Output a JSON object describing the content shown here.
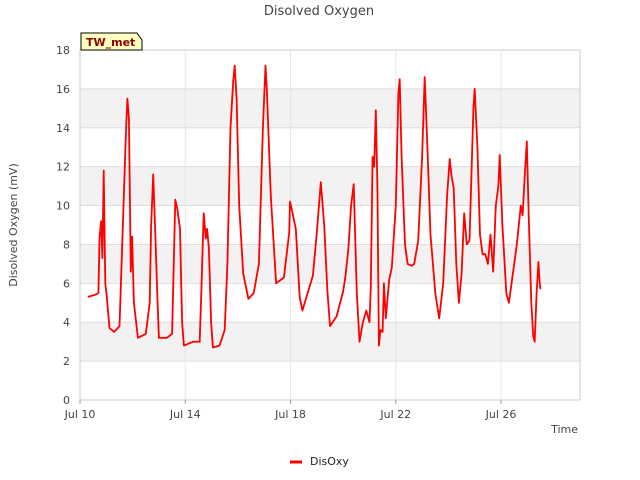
{
  "chart_data": {
    "type": "line",
    "title": "Disolved Oxygen",
    "xlabel": "Time",
    "ylabel": "Disolved Oxygen (mV)",
    "ylim": [
      0,
      18
    ],
    "yticks": [
      0,
      2,
      4,
      6,
      8,
      10,
      12,
      14,
      16,
      18
    ],
    "xlim": [
      10,
      29
    ],
    "xticks": [
      {
        "value": 10,
        "label": "Jul 10"
      },
      {
        "value": 14,
        "label": "Jul 14"
      },
      {
        "value": 18,
        "label": "Jul 18"
      },
      {
        "value": 22,
        "label": "Jul 22"
      },
      {
        "value": 26,
        "label": "Jul 26"
      }
    ],
    "grid": true,
    "banded_background": true,
    "site_label": "TW_met",
    "legend": {
      "position": "bottom-center"
    },
    "series": [
      {
        "name": "DisOxy",
        "color": "#ff0000",
        "points": [
          [
            10.3,
            5.3
          ],
          [
            10.55,
            5.4
          ],
          [
            10.7,
            5.5
          ],
          [
            10.74,
            8.3
          ],
          [
            10.8,
            9.2
          ],
          [
            10.85,
            7.3
          ],
          [
            10.9,
            11.8
          ],
          [
            10.96,
            6.0
          ],
          [
            11.02,
            5.3
          ],
          [
            11.12,
            3.7
          ],
          [
            11.3,
            3.5
          ],
          [
            11.5,
            3.8
          ],
          [
            11.75,
            14.0
          ],
          [
            11.8,
            15.5
          ],
          [
            11.86,
            14.5
          ],
          [
            11.93,
            6.6
          ],
          [
            11.98,
            8.4
          ],
          [
            12.05,
            5.0
          ],
          [
            12.2,
            3.2
          ],
          [
            12.5,
            3.4
          ],
          [
            12.65,
            5.0
          ],
          [
            12.7,
            8.9
          ],
          [
            12.78,
            11.6
          ],
          [
            12.85,
            9.0
          ],
          [
            12.95,
            5.0
          ],
          [
            13.0,
            3.2
          ],
          [
            13.3,
            3.2
          ],
          [
            13.5,
            3.4
          ],
          [
            13.55,
            6.3
          ],
          [
            13.62,
            10.3
          ],
          [
            13.7,
            9.8
          ],
          [
            13.8,
            8.8
          ],
          [
            13.88,
            4.0
          ],
          [
            13.95,
            2.8
          ],
          [
            14.3,
            3.0
          ],
          [
            14.55,
            3.0
          ],
          [
            14.62,
            6.0
          ],
          [
            14.7,
            9.6
          ],
          [
            14.78,
            8.3
          ],
          [
            14.83,
            8.8
          ],
          [
            14.9,
            7.8
          ],
          [
            14.98,
            4.0
          ],
          [
            15.05,
            2.7
          ],
          [
            15.3,
            2.8
          ],
          [
            15.5,
            3.6
          ],
          [
            15.6,
            7.0
          ],
          [
            15.72,
            14.0
          ],
          [
            15.82,
            16.4
          ],
          [
            15.88,
            17.2
          ],
          [
            15.95,
            15.5
          ],
          [
            16.05,
            10.0
          ],
          [
            16.2,
            6.5
          ],
          [
            16.4,
            5.2
          ],
          [
            16.6,
            5.5
          ],
          [
            16.8,
            7.0
          ],
          [
            16.95,
            14.0
          ],
          [
            17.05,
            17.2
          ],
          [
            17.1,
            16.0
          ],
          [
            17.25,
            10.5
          ],
          [
            17.45,
            6.0
          ],
          [
            17.75,
            6.3
          ],
          [
            17.95,
            8.6
          ],
          [
            17.98,
            10.2
          ],
          [
            18.05,
            9.8
          ],
          [
            18.2,
            8.8
          ],
          [
            18.35,
            5.3
          ],
          [
            18.45,
            4.6
          ],
          [
            18.65,
            5.5
          ],
          [
            18.85,
            6.4
          ],
          [
            19.0,
            8.6
          ],
          [
            19.15,
            11.2
          ],
          [
            19.28,
            9.0
          ],
          [
            19.4,
            5.6
          ],
          [
            19.5,
            3.8
          ],
          [
            19.75,
            4.3
          ],
          [
            20.0,
            5.6
          ],
          [
            20.1,
            6.5
          ],
          [
            20.2,
            7.8
          ],
          [
            20.3,
            10.0
          ],
          [
            20.4,
            11.1
          ],
          [
            20.52,
            5.5
          ],
          [
            20.62,
            3.0
          ],
          [
            20.75,
            4.0
          ],
          [
            20.88,
            4.6
          ],
          [
            21.0,
            4.0
          ],
          [
            21.05,
            5.8
          ],
          [
            21.12,
            12.5
          ],
          [
            21.18,
            12.0
          ],
          [
            21.24,
            14.9
          ],
          [
            21.3,
            11.0
          ],
          [
            21.36,
            2.8
          ],
          [
            21.42,
            3.6
          ],
          [
            21.5,
            3.5
          ],
          [
            21.55,
            6.0
          ],
          [
            21.62,
            4.2
          ],
          [
            21.75,
            6.2
          ],
          [
            21.85,
            6.8
          ],
          [
            22.0,
            10.0
          ],
          [
            22.1,
            15.8
          ],
          [
            22.15,
            16.5
          ],
          [
            22.22,
            12.5
          ],
          [
            22.35,
            8.0
          ],
          [
            22.45,
            7.0
          ],
          [
            22.6,
            6.9
          ],
          [
            22.7,
            7.0
          ],
          [
            22.85,
            8.2
          ],
          [
            23.0,
            12.5
          ],
          [
            23.1,
            16.6
          ],
          [
            23.2,
            13.0
          ],
          [
            23.32,
            8.5
          ],
          [
            23.5,
            5.5
          ],
          [
            23.65,
            4.2
          ],
          [
            23.8,
            6.0
          ],
          [
            23.95,
            10.5
          ],
          [
            24.05,
            12.4
          ],
          [
            24.12,
            11.5
          ],
          [
            24.2,
            10.9
          ],
          [
            24.3,
            7.0
          ],
          [
            24.4,
            5.0
          ],
          [
            24.5,
            6.5
          ],
          [
            24.6,
            9.6
          ],
          [
            24.7,
            8.0
          ],
          [
            24.8,
            8.2
          ],
          [
            24.95,
            15.0
          ],
          [
            25.0,
            16.0
          ],
          [
            25.1,
            13.0
          ],
          [
            25.2,
            8.5
          ],
          [
            25.3,
            7.5
          ],
          [
            25.4,
            7.5
          ],
          [
            25.5,
            7.0
          ],
          [
            25.6,
            8.5
          ],
          [
            25.7,
            6.6
          ],
          [
            25.8,
            10.0
          ],
          [
            25.9,
            11.0
          ],
          [
            25.95,
            12.6
          ],
          [
            26.05,
            9.0
          ],
          [
            26.2,
            5.5
          ],
          [
            26.3,
            5.0
          ],
          [
            26.5,
            7.0
          ],
          [
            26.6,
            8.0
          ],
          [
            26.75,
            10.0
          ],
          [
            26.82,
            9.5
          ],
          [
            26.9,
            11.5
          ],
          [
            26.98,
            13.3
          ],
          [
            27.05,
            9.5
          ],
          [
            27.15,
            5.0
          ],
          [
            27.22,
            3.3
          ],
          [
            27.28,
            3.0
          ],
          [
            27.35,
            5.5
          ],
          [
            27.42,
            7.1
          ],
          [
            27.47,
            6.0
          ],
          [
            27.5,
            5.7
          ]
        ]
      }
    ]
  }
}
